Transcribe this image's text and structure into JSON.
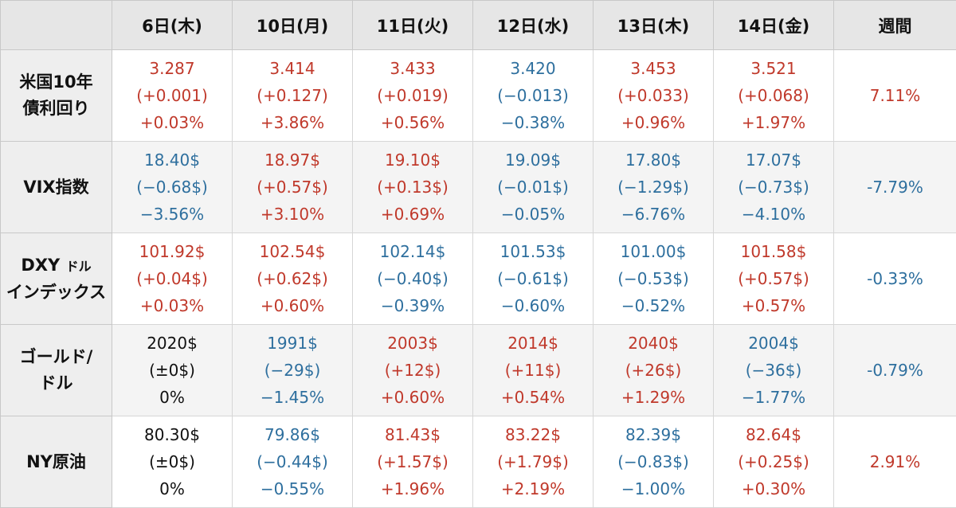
{
  "table": {
    "corner": "",
    "columns": [
      "6日(木)",
      "10日(月)",
      "11日(火)",
      "12日(水)",
      "13日(木)",
      "14日(金)",
      "週間"
    ],
    "rows": [
      {
        "label_lines": [
          "米国10年",
          "債利回り"
        ],
        "cells": [
          {
            "value": "3.287",
            "change": "(+0.001)",
            "pct": "+0.03%",
            "trend": "up"
          },
          {
            "value": "3.414",
            "change": "(+0.127)",
            "pct": "+3.86%",
            "trend": "up"
          },
          {
            "value": "3.433",
            "change": "(+0.019)",
            "pct": "+0.56%",
            "trend": "up"
          },
          {
            "value": "3.420",
            "change": "(−0.013)",
            "pct": "−0.38%",
            "trend": "down"
          },
          {
            "value": "3.453",
            "change": "(+0.033)",
            "pct": "+0.96%",
            "trend": "up"
          },
          {
            "value": "3.521",
            "change": "(+0.068)",
            "pct": "+1.97%",
            "trend": "up"
          }
        ],
        "weekly": {
          "text": "7.11%",
          "trend": "up"
        }
      },
      {
        "label_lines": [
          "VIX指数"
        ],
        "cells": [
          {
            "value": "18.40$",
            "change": "(−0.68$)",
            "pct": "−3.56%",
            "trend": "down"
          },
          {
            "value": "18.97$",
            "change": "(+0.57$)",
            "pct": "+3.10%",
            "trend": "up"
          },
          {
            "value": "19.10$",
            "change": "(+0.13$)",
            "pct": "+0.69%",
            "trend": "up"
          },
          {
            "value": "19.09$",
            "change": "(−0.01$)",
            "pct": "−0.05%",
            "trend": "down"
          },
          {
            "value": "17.80$",
            "change": "(−1.29$)",
            "pct": "−6.76%",
            "trend": "down"
          },
          {
            "value": "17.07$",
            "change": "(−0.73$)",
            "pct": "−4.10%",
            "trend": "down"
          }
        ],
        "weekly": {
          "text": "-7.79%",
          "trend": "down"
        }
      },
      {
        "label_main": "DXY",
        "label_small": "ドル",
        "label_line2": "インデックス",
        "cells": [
          {
            "value": "101.92$",
            "change": "(+0.04$)",
            "pct": "+0.03%",
            "trend": "up"
          },
          {
            "value": "102.54$",
            "change": "(+0.62$)",
            "pct": "+0.60%",
            "trend": "up"
          },
          {
            "value": "102.14$",
            "change": "(−0.40$)",
            "pct": "−0.39%",
            "trend": "down"
          },
          {
            "value": "101.53$",
            "change": "(−0.61$)",
            "pct": "−0.60%",
            "trend": "down"
          },
          {
            "value": "101.00$",
            "change": "(−0.53$)",
            "pct": "−0.52%",
            "trend": "down"
          },
          {
            "value": "101.58$",
            "change": "(+0.57$)",
            "pct": "+0.57%",
            "trend": "up"
          }
        ],
        "weekly": {
          "text": "-0.33%",
          "trend": "down"
        }
      },
      {
        "label_lines": [
          "ゴールド/",
          "ドル"
        ],
        "cells": [
          {
            "value": "2020$",
            "change": "(±0$)",
            "pct": "0%",
            "trend": "flat"
          },
          {
            "value": "1991$",
            "change": "(−29$)",
            "pct": "−1.45%",
            "trend": "down"
          },
          {
            "value": "2003$",
            "change": "(+12$)",
            "pct": "+0.60%",
            "trend": "up"
          },
          {
            "value": "2014$",
            "change": "(+11$)",
            "pct": "+0.54%",
            "trend": "up"
          },
          {
            "value": "2040$",
            "change": "(+26$)",
            "pct": "+1.29%",
            "trend": "up"
          },
          {
            "value": "2004$",
            "change": "(−36$)",
            "pct": "−1.77%",
            "trend": "down"
          }
        ],
        "weekly": {
          "text": "-0.79%",
          "trend": "down"
        }
      },
      {
        "label_lines": [
          "NY原油"
        ],
        "cells": [
          {
            "value": "80.30$",
            "change": "(±0$)",
            "pct": "0%",
            "trend": "flat"
          },
          {
            "value": "79.86$",
            "change": "(−0.44$)",
            "pct": "−0.55%",
            "trend": "down"
          },
          {
            "value": "81.43$",
            "change": "(+1.57$)",
            "pct": "+1.96%",
            "trend": "up"
          },
          {
            "value": "83.22$",
            "change": "(+1.79$)",
            "pct": "+2.19%",
            "trend": "up"
          },
          {
            "value": "82.39$",
            "change": "(−0.83$)",
            "pct": "−1.00%",
            "trend": "down"
          },
          {
            "value": "82.64$",
            "change": "(+0.25$)",
            "pct": "+0.30%",
            "trend": "up"
          }
        ],
        "weekly": {
          "text": "2.91%",
          "trend": "up"
        }
      }
    ]
  },
  "colors": {
    "up": "#c0392b",
    "down": "#2e6f9e",
    "flat": "#111111",
    "header_bg": "#e6e6e6",
    "label_bg": "#eeeeee"
  },
  "chart_data": {
    "type": "table",
    "columns": [
      "6日(木)",
      "10日(月)",
      "11日(火)",
      "12日(水)",
      "13日(木)",
      "14日(金)",
      "週間"
    ],
    "rows": [
      {
        "name": "米国10年債利回り",
        "values": [
          3.287,
          3.414,
          3.433,
          3.42,
          3.453,
          3.521
        ],
        "changes": [
          0.001,
          0.127,
          0.019,
          -0.013,
          0.033,
          0.068
        ],
        "pct": [
          0.03,
          3.86,
          0.56,
          -0.38,
          0.96,
          1.97
        ],
        "weekly_pct": 7.11
      },
      {
        "name": "VIX指数",
        "values": [
          18.4,
          18.97,
          19.1,
          19.09,
          17.8,
          17.07
        ],
        "changes": [
          -0.68,
          0.57,
          0.13,
          -0.01,
          -1.29,
          -0.73
        ],
        "pct": [
          -3.56,
          3.1,
          0.69,
          -0.05,
          -6.76,
          -4.1
        ],
        "weekly_pct": -7.79
      },
      {
        "name": "DXY ドルインデックス",
        "values": [
          101.92,
          102.54,
          102.14,
          101.53,
          101.0,
          101.58
        ],
        "changes": [
          0.04,
          0.62,
          -0.4,
          -0.61,
          -0.53,
          0.57
        ],
        "pct": [
          0.03,
          0.6,
          -0.39,
          -0.6,
          -0.52,
          0.57
        ],
        "weekly_pct": -0.33
      },
      {
        "name": "ゴールド/ドル",
        "values": [
          2020,
          1991,
          2003,
          2014,
          2040,
          2004
        ],
        "changes": [
          0,
          -29,
          12,
          11,
          26,
          -36
        ],
        "pct": [
          0,
          -1.45,
          0.6,
          0.54,
          1.29,
          -1.77
        ],
        "weekly_pct": -0.79
      },
      {
        "name": "NY原油",
        "values": [
          80.3,
          79.86,
          81.43,
          83.22,
          82.39,
          82.64
        ],
        "changes": [
          0,
          -0.44,
          1.57,
          1.79,
          -0.83,
          0.25
        ],
        "pct": [
          0,
          -0.55,
          1.96,
          2.19,
          -1.0,
          0.3
        ],
        "weekly_pct": 2.91
      }
    ]
  }
}
